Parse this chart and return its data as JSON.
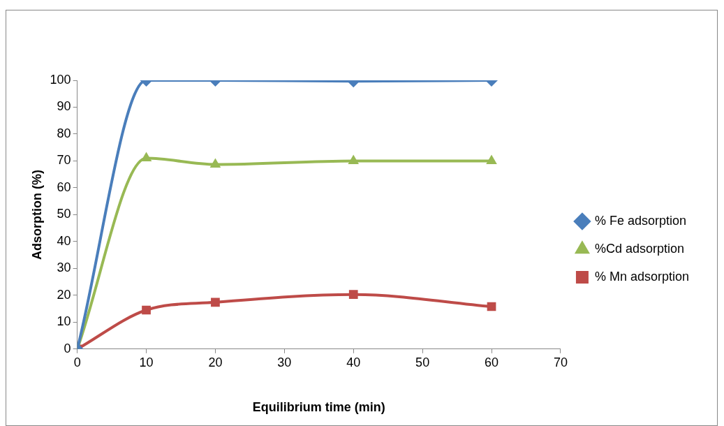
{
  "chart_data": {
    "type": "line",
    "xlabel": "Equilibrium time (min)",
    "ylabel": "Adsorption (%)",
    "x": [
      0,
      10,
      20,
      40,
      60
    ],
    "series": [
      {
        "name": "% Fe adsorption",
        "color": "#4a7ebb",
        "marker": "diamond",
        "values": [
          0,
          100,
          100,
          99.7,
          100
        ]
      },
      {
        "name": "%Cd adsorption",
        "color": "#98b954",
        "marker": "triangle",
        "values": [
          0,
          71,
          68.7,
          70,
          70
        ]
      },
      {
        "name": "% Mn adsorption",
        "color": "#be4b48",
        "marker": "square",
        "values": [
          0,
          14.5,
          17.4,
          20.3,
          15.8
        ]
      }
    ],
    "xlim": [
      0,
      70
    ],
    "xticks": [
      0,
      10,
      20,
      30,
      40,
      50,
      60,
      70
    ],
    "ylim": [
      0,
      100
    ],
    "yticks": [
      0,
      10,
      20,
      30,
      40,
      50,
      60,
      70,
      80,
      90,
      100
    ],
    "grid": false,
    "legend": "right"
  }
}
